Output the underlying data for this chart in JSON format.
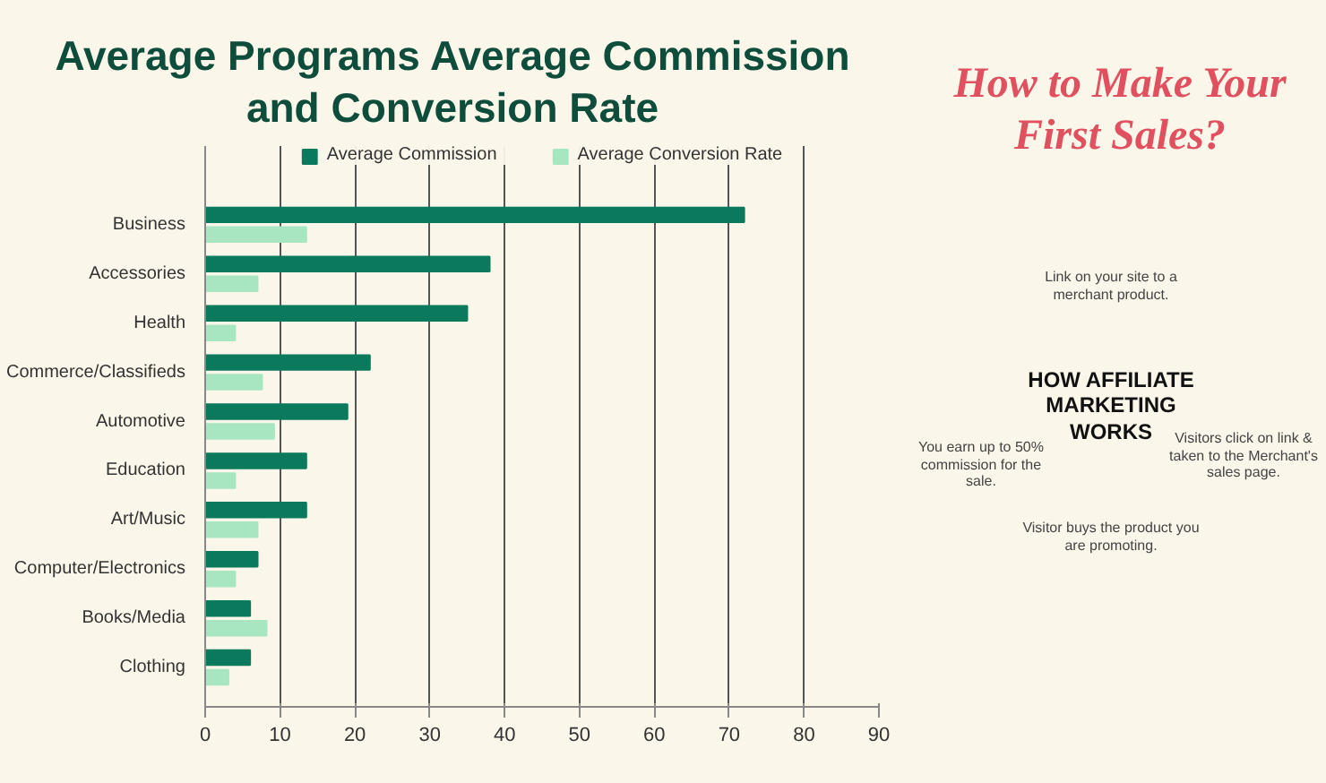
{
  "chart_data": {
    "type": "bar",
    "orientation": "horizontal",
    "title": "Average Programs Average Commission and Conversion Rate",
    "categories": [
      "Business",
      "Accessories",
      "Health",
      "Commerce/Classifieds",
      "Automotive",
      "Education",
      "Art/Music",
      "Computer/Electronics",
      "Books/Media",
      "Clothing"
    ],
    "series": [
      {
        "name": "Average Commission",
        "color": "#0b7a5c",
        "values": [
          72,
          38,
          35,
          22,
          19,
          13.5,
          13.5,
          7,
          6,
          6
        ]
      },
      {
        "name": "Average Conversion Rate",
        "color": "#a8e6c2",
        "values": [
          13.5,
          7,
          4,
          7.6,
          9.2,
          4,
          7,
          4,
          8.2,
          3.1
        ]
      }
    ],
    "xlim": [
      0,
      90
    ],
    "xticks": [
      0,
      10,
      20,
      30,
      40,
      50,
      60,
      70,
      80,
      90
    ],
    "grid": "x",
    "legend": "top",
    "annotations": [
      "How to Make Your First Sales?",
      "HOW AFFILIATE MARKETING WORKS",
      "Link on your site to a merchant product.",
      "Visitors click on link & taken to the Merchant's sales page.",
      "Visitor buys the product you are promoting.",
      "You earn up to 50% commission for the sale."
    ]
  }
}
